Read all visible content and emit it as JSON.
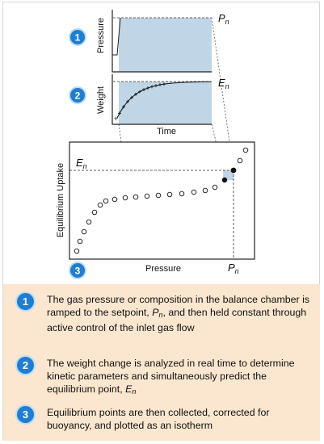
{
  "colors": {
    "accent_blue": "#1f7ed3",
    "panel_fill": "#c0d6e6",
    "bottom_fill": "#fbe6cf"
  },
  "steps": [
    {
      "number": "1"
    },
    {
      "number": "2"
    },
    {
      "number": "3"
    }
  ],
  "pressure_panel": {
    "ylabel": "Pressure",
    "right_label_main": "P",
    "right_label_sub": "n"
  },
  "weight_panel": {
    "ylabel": "Weight",
    "xlabel": "Time",
    "right_label_main": "E",
    "right_label_sub": "n",
    "start_marker": "+"
  },
  "isotherm": {
    "ylabel": "Equilibrium Uptake",
    "xlabel": "Pressure",
    "y_marker_main": "E",
    "y_marker_sub": "n",
    "x_marker_main": "P",
    "x_marker_sub": "n"
  },
  "annotations": [
    {
      "number": "1",
      "parts": [
        "The gas pressure or composition in the balance chamber is ramped to the setpoint, ",
        "P",
        "n",
        ", and then held constant through active control of the inlet gas flow"
      ]
    },
    {
      "number": "2",
      "parts": [
        "The weight change is analyzed in real time to determine kinetic parameters and simultaneously predict the equilibrium point, ",
        "E",
        "n"
      ]
    },
    {
      "number": "3",
      "text": "Equilibrium points are then collected, corrected for buoyancy, and plotted as an isotherm"
    }
  ]
}
